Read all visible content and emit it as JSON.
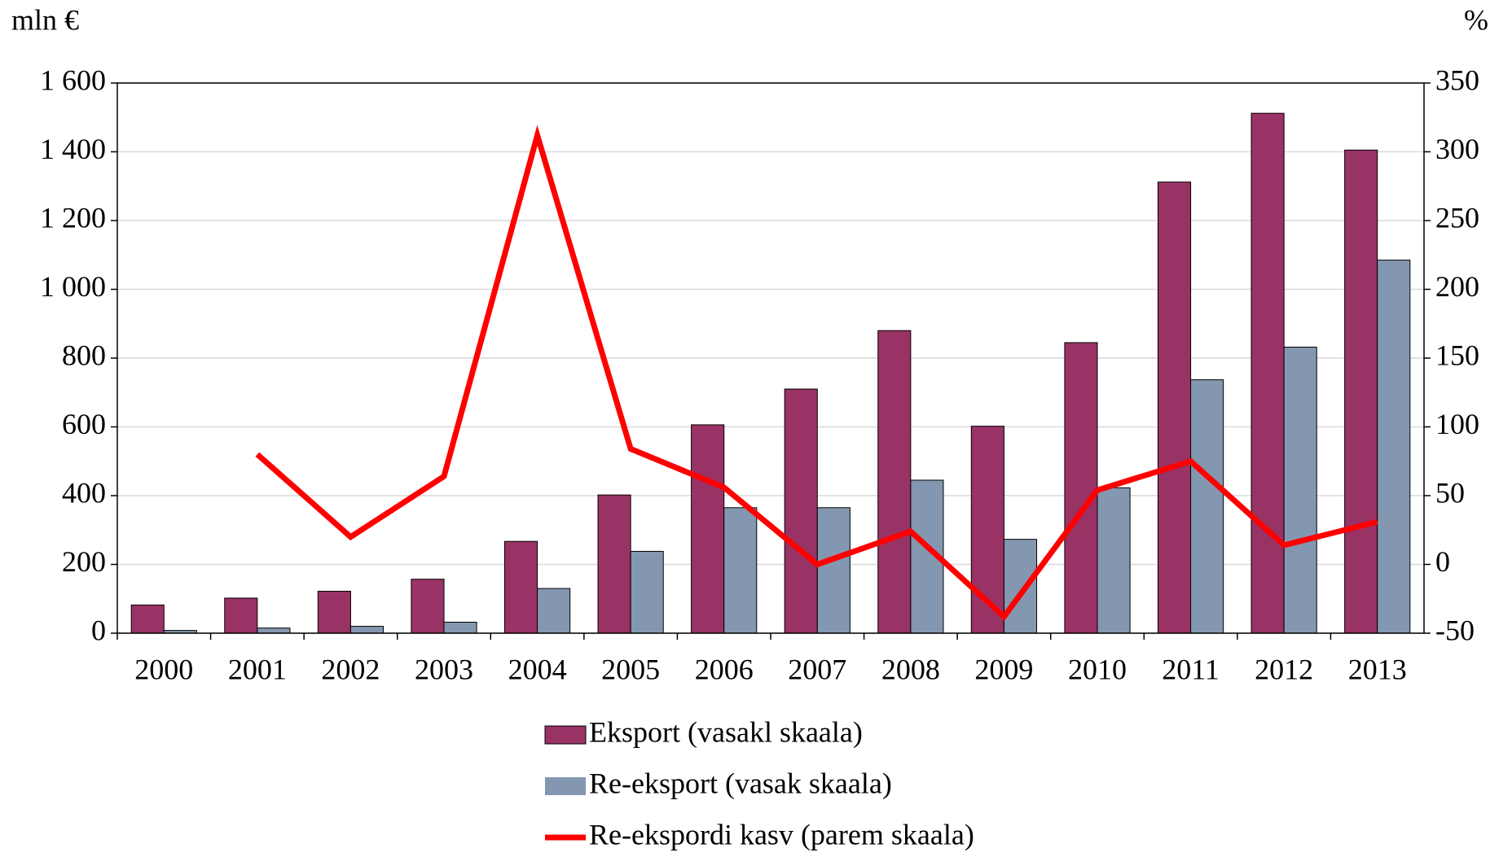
{
  "chart_data": {
    "type": "bar",
    "ylabel": "mln €",
    "y2label": "%",
    "categories": [
      "2000",
      "2001",
      "2002",
      "2003",
      "2004",
      "2005",
      "2006",
      "2007",
      "2008",
      "2009",
      "2010",
      "2011",
      "2012",
      "2013"
    ],
    "series": [
      {
        "name": "Eksport (vasakl skaala)",
        "color": "#993366",
        "type": "bar",
        "values": [
          82,
          102,
          122,
          157,
          267,
          402,
          606,
          710,
          880,
          602,
          845,
          1312,
          1512,
          1405
        ]
      },
      {
        "name": "Re-eksport (vasak skaala)",
        "color": "#8497b0",
        "type": "bar",
        "values": [
          8,
          15,
          20,
          32,
          130,
          238,
          365,
          365,
          445,
          273,
          423,
          737,
          832,
          1085
        ]
      },
      {
        "name": "Re-ekspordi kasv (parem skaala)",
        "color": "#ff0000",
        "type": "line",
        "axis": "y2",
        "values": [
          null,
          80,
          20,
          64,
          312,
          84,
          56,
          0,
          24,
          -38,
          54,
          75,
          14,
          31
        ]
      }
    ],
    "ylim": [
      0,
      1600
    ],
    "yticks": [
      0,
      200,
      400,
      600,
      800,
      {
        "value": 1000,
        "label": "1 000"
      },
      {
        "value": 1200,
        "label": "1 200"
      },
      {
        "value": 1400,
        "label": "1 400"
      },
      {
        "value": 1600,
        "label": "1 600"
      }
    ],
    "y2lim": [
      -50,
      350
    ],
    "y2ticks": [
      -50,
      0,
      50,
      100,
      150,
      200,
      250,
      300,
      350
    ],
    "grid": true,
    "legend": "bottom"
  }
}
